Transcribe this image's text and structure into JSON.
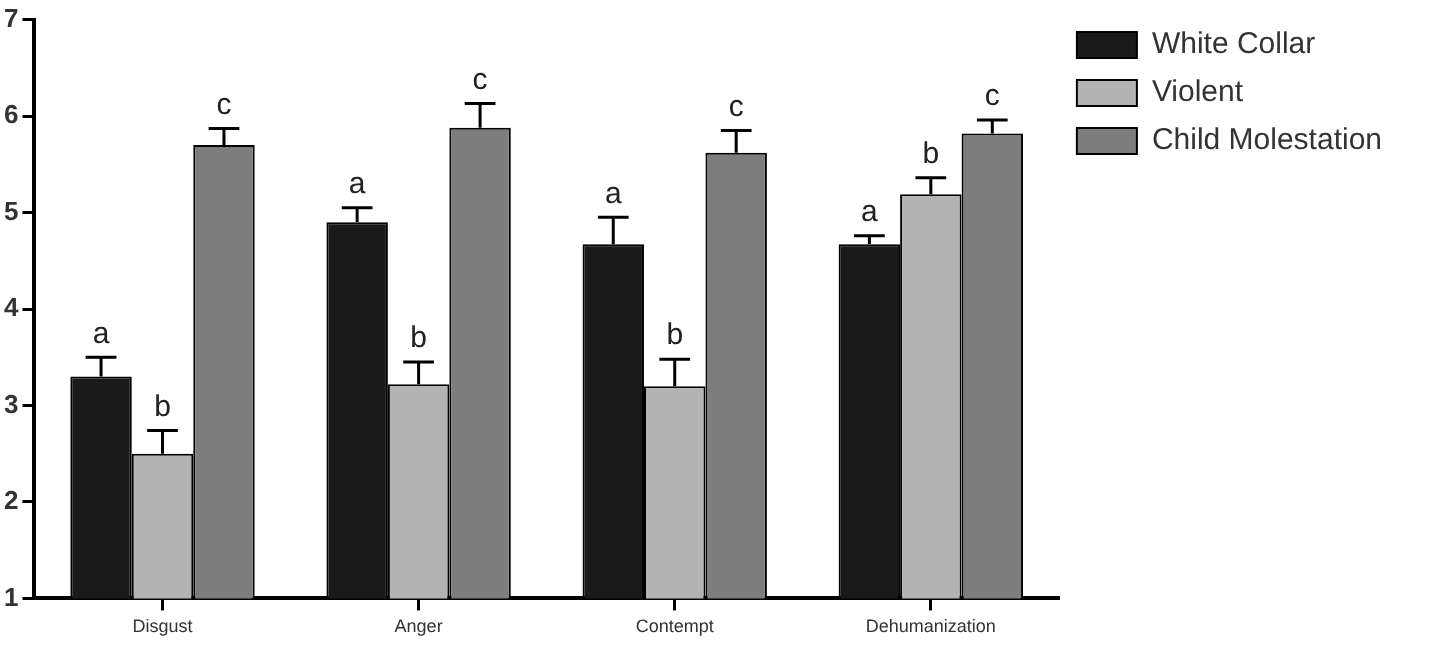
{
  "chart_data": {
    "type": "bar",
    "categories": [
      "Disgust",
      "Anger",
      "Contempt",
      "Dehumanization"
    ],
    "series": [
      {
        "name": "White Collar",
        "color": "#1a1a1a",
        "values": [
          3.3,
          4.9,
          4.67,
          4.67
        ],
        "errors": [
          [
            3.3,
            3.5
          ],
          [
            4.9,
            5.05
          ],
          [
            4.67,
            4.95
          ],
          [
            4.67,
            4.76
          ]
        ],
        "value_labels": [
          "a",
          "a",
          "a",
          "a"
        ]
      },
      {
        "name": "Violent",
        "color": "#b3b3b3",
        "values": [
          2.5,
          3.22,
          3.2,
          5.19
        ],
        "errors": [
          [
            2.5,
            2.74
          ],
          [
            3.22,
            3.45
          ],
          [
            3.2,
            3.48
          ],
          [
            5.19,
            5.36
          ]
        ],
        "value_labels": [
          "b",
          "b",
          "b",
          "b"
        ]
      },
      {
        "name": "Child Molestation",
        "color": "#7d7d7d",
        "values": [
          5.7,
          5.88,
          5.62,
          5.82
        ],
        "errors": [
          [
            5.7,
            5.87
          ],
          [
            5.88,
            6.13
          ],
          [
            5.62,
            5.85
          ],
          [
            5.82,
            5.96
          ]
        ],
        "value_labels": [
          "c",
          "c",
          "c",
          "c"
        ]
      }
    ],
    "ylim": [
      1,
      7
    ],
    "yticks": [
      1,
      2,
      3,
      4,
      5,
      6,
      7
    ],
    "grid": false,
    "legend": "top right"
  }
}
